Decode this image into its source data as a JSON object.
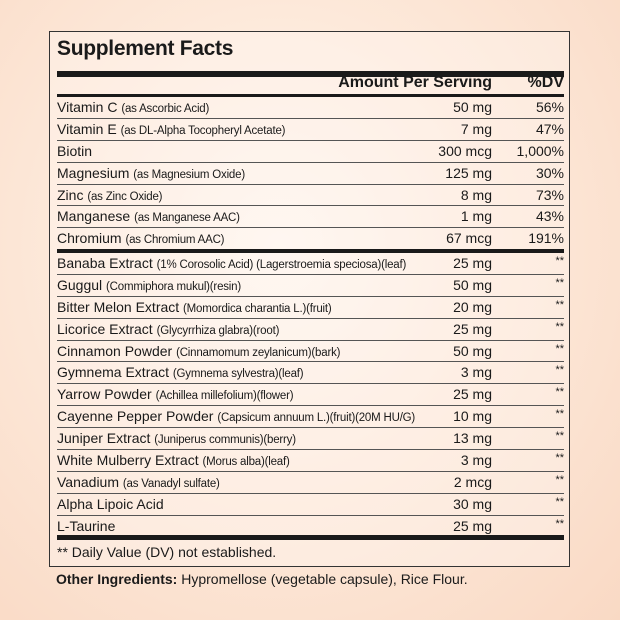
{
  "title": "Supplement Facts",
  "header": {
    "amount": "Amount Per Serving",
    "dv": "%DV"
  },
  "vitamins": [
    {
      "name": "Vitamin C",
      "detail": "(as Ascorbic Acid)",
      "amount": "50 mg",
      "dv": "56%"
    },
    {
      "name": "Vitamin E",
      "detail": "(as DL-Alpha Tocopheryl Acetate)",
      "amount": "7 mg",
      "dv": "47%"
    },
    {
      "name": "Biotin",
      "detail": "",
      "amount": "300 mcg",
      "dv": "1,000%"
    },
    {
      "name": "Magnesium",
      "detail": "(as Magnesium Oxide)",
      "amount": "125 mg",
      "dv": "30%"
    },
    {
      "name": "Zinc",
      "detail": "(as Zinc Oxide)",
      "amount": "8 mg",
      "dv": "73%"
    },
    {
      "name": "Manganese",
      "detail": "(as Manganese AAC)",
      "amount": "1 mg",
      "dv": "43%"
    },
    {
      "name": "Chromium",
      "detail": "(as Chromium AAC)",
      "amount": "67 mcg",
      "dv": "191%"
    }
  ],
  "others": [
    {
      "name": "Banaba Extract",
      "detail": "(1% Corosolic Acid) (Lagerstroemia speciosa)(leaf)",
      "amount": "25 mg",
      "dv": "**"
    },
    {
      "name": "Guggul",
      "detail": "(Commiphora mukul)(resin)",
      "amount": "50 mg",
      "dv": "**"
    },
    {
      "name": "Bitter Melon Extract",
      "detail": "(Momordica charantia L.)(fruit)",
      "amount": "20 mg",
      "dv": "**"
    },
    {
      "name": "Licorice Extract",
      "detail": "(Glycyrrhiza glabra)(root)",
      "amount": "25 mg",
      "dv": "**"
    },
    {
      "name": "Cinnamon Powder",
      "detail": "(Cinnamomum zeylanicum)(bark)",
      "amount": "50 mg",
      "dv": "**"
    },
    {
      "name": "Gymnema Extract",
      "detail": "(Gymnema sylvestra)(leaf)",
      "amount": "3 mg",
      "dv": "**"
    },
    {
      "name": "Yarrow Powder",
      "detail": "(Achillea millefolium)(flower)",
      "amount": "25 mg",
      "dv": "**"
    },
    {
      "name": "Cayenne Pepper Powder",
      "detail": "(Capsicum annuum L.)(fruit)(20M HU/G)",
      "amount": "10 mg",
      "dv": "**"
    },
    {
      "name": "Juniper Extract",
      "detail": "(Juniperus communis)(berry)",
      "amount": "13 mg",
      "dv": "**"
    },
    {
      "name": "White Mulberry Extract",
      "detail": "(Morus alba)(leaf)",
      "amount": "3 mg",
      "dv": "**"
    },
    {
      "name": "Vanadium",
      "detail": "(as Vanadyl sulfate)",
      "amount": "2 mcg",
      "dv": "**"
    },
    {
      "name": "Alpha Lipoic Acid",
      "detail": "",
      "amount": "30 mg",
      "dv": "**"
    },
    {
      "name": "L-Taurine",
      "detail": "",
      "amount": "25 mg",
      "dv": "**"
    }
  ],
  "footnote": "** Daily Value (DV) not established.",
  "other_ingredients": {
    "label": "Other Ingredients:",
    "text": "Hypromellose (vegetable capsule), Rice Flour."
  }
}
